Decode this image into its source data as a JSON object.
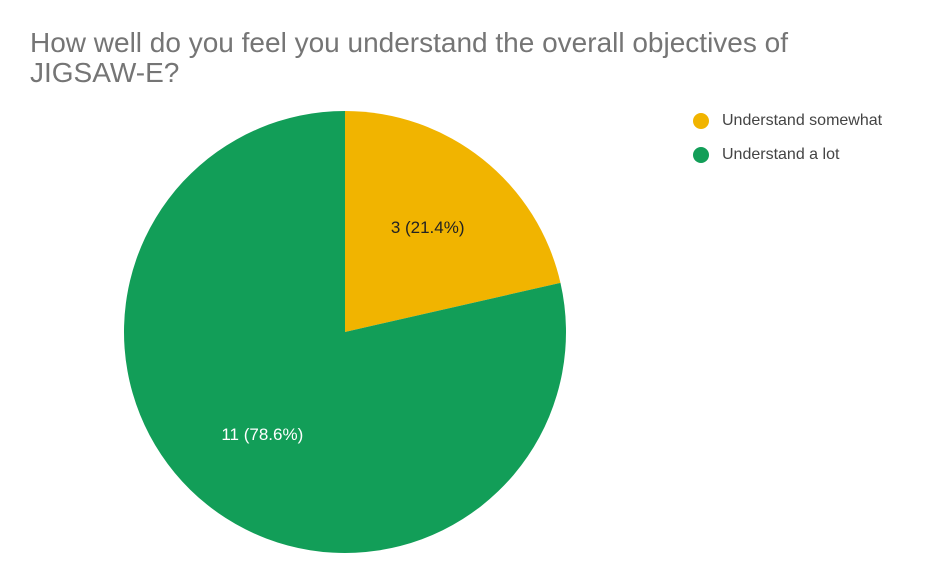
{
  "chart_data": {
    "type": "pie",
    "title": "How well do you feel you understand the overall objectives of JIGSAW-E?",
    "categories": [
      "Understand somewhat",
      "Understand a lot"
    ],
    "values": [
      3,
      11
    ],
    "value_labels": [
      "3 (21.4%)",
      "11 (78.6%)"
    ],
    "colors": [
      "#f1b400",
      "#129e58"
    ],
    "label_colors": [
      "#222222",
      "#ffffff"
    ],
    "legend": "top-right"
  }
}
